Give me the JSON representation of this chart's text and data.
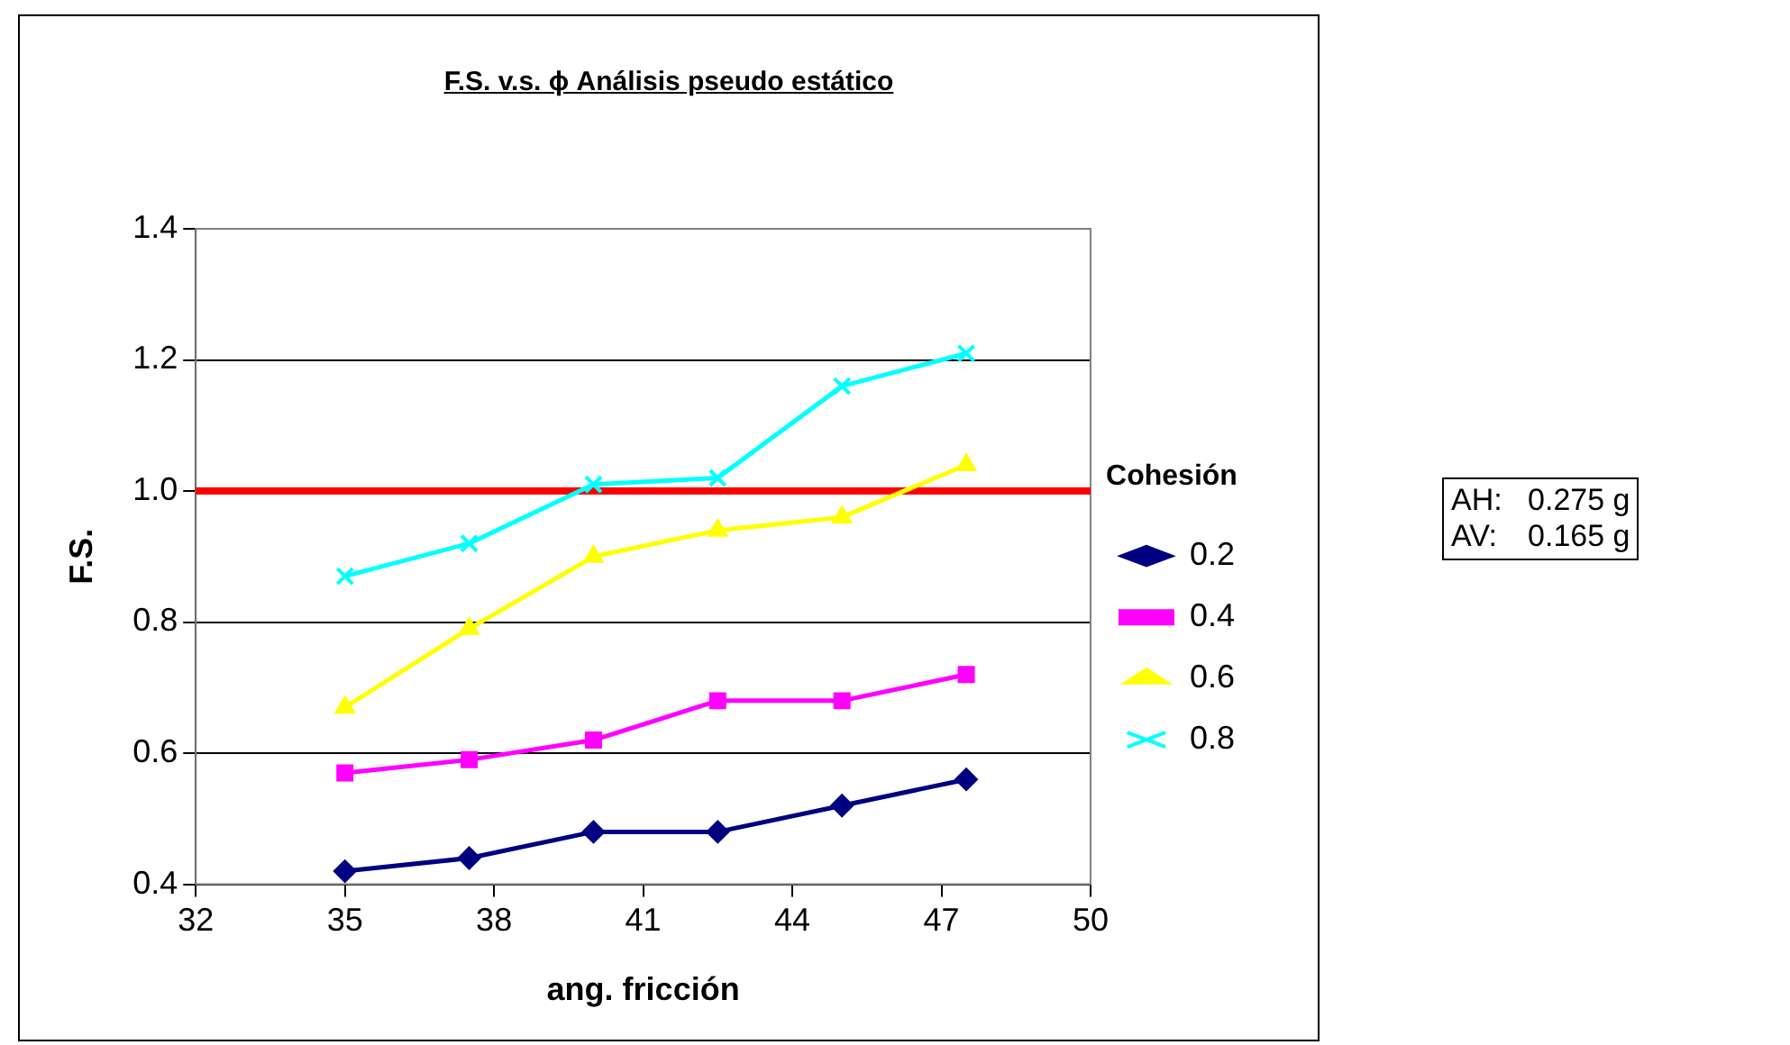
{
  "chart_data": {
    "type": "line",
    "title": "F.S. v.s. ϕ Análisis pseudo estático",
    "xlabel": "ang. fricción",
    "ylabel": "F.S.",
    "legend_title": "Cohesión",
    "legend": "right",
    "grid": "y",
    "line_style": "solid",
    "x": [
      35,
      37.5,
      40,
      42.5,
      45,
      47.5
    ],
    "xlim": [
      32,
      50
    ],
    "xticks": [
      32,
      35,
      38,
      41,
      44,
      47,
      50
    ],
    "ylim": [
      0.4,
      1.4
    ],
    "yticks": [
      {
        "value": 0.4,
        "label": "0.4"
      },
      {
        "value": 0.6,
        "label": "0.6"
      },
      {
        "value": 0.8,
        "label": "0.8"
      },
      {
        "value": 1.0,
        "label": "1.0"
      },
      {
        "value": 1.2,
        "label": "1.2"
      },
      {
        "value": 1.4,
        "label": "1.4"
      }
    ],
    "series": [
      {
        "name": "0.2",
        "color": "#000080",
        "marker": "diamond",
        "values": [
          0.42,
          0.44,
          0.48,
          0.48,
          0.52,
          0.56
        ]
      },
      {
        "name": "0.4",
        "color": "#ff00ff",
        "marker": "square",
        "values": [
          0.57,
          0.59,
          0.62,
          0.68,
          0.68,
          0.72
        ]
      },
      {
        "name": "0.6",
        "color": "#ffff00",
        "marker": "triangle",
        "values": [
          0.67,
          0.79,
          0.9,
          0.94,
          0.96,
          1.04
        ]
      },
      {
        "name": "0.8",
        "color": "#00ffff",
        "marker": "cross",
        "values": [
          0.87,
          0.92,
          1.01,
          1.02,
          1.16,
          1.21
        ]
      }
    ],
    "ref_lines": [
      {
        "axis": "y",
        "value": 1.0,
        "color": "#ff0000",
        "line_style": "solid"
      }
    ],
    "annotations": [
      "AH:\t0.275 g",
      "AV:\t0.165 g"
    ]
  }
}
